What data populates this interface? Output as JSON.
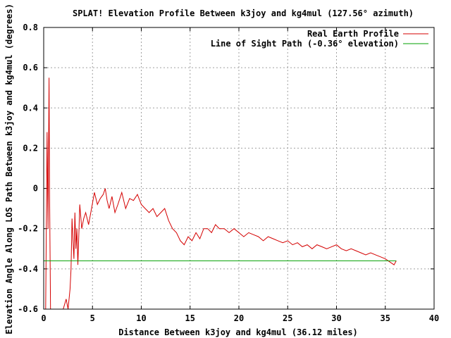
{
  "chart_data": {
    "type": "line",
    "title": "SPLAT! Elevation Profile Between k3joy and kg4mul (127.56° azimuth)",
    "xlabel": "Distance Between k3joy and kg4mul (36.12 miles)",
    "ylabel": "Elevation Angle Along LOS Path Between k3joy and kg4mul (degrees)",
    "xlim": [
      0,
      40
    ],
    "ylim": [
      -0.6,
      0.8
    ],
    "xticks": [
      0,
      5,
      10,
      15,
      20,
      25,
      30,
      35,
      40
    ],
    "yticks": [
      -0.6,
      -0.4,
      -0.2,
      0,
      0.2,
      0.4,
      0.6,
      0.8
    ],
    "xtick_labels": [
      "0",
      "5",
      "10",
      "15",
      "20",
      "25",
      "30",
      "35",
      "40"
    ],
    "ytick_labels": [
      "-0.6",
      "-0.4",
      "-0.2",
      "0",
      "0.2",
      "0.4",
      "0.6",
      "0.8"
    ],
    "grid": true,
    "legend_position": "top-right",
    "series": [
      {
        "name": "Real Earth Profile",
        "color": "#d40000",
        "x": [
          0.2,
          0.35,
          0.45,
          0.55,
          0.6,
          0.7,
          0.8,
          0.95,
          1.1,
          1.3,
          1.6,
          2.0,
          2.3,
          2.5,
          2.7,
          2.8,
          2.9,
          3.0,
          3.1,
          3.2,
          3.3,
          3.4,
          3.5,
          3.7,
          3.9,
          4.1,
          4.3,
          4.6,
          4.9,
          5.2,
          5.5,
          5.8,
          6.1,
          6.3,
          6.5,
          6.7,
          7.0,
          7.3,
          7.6,
          8.0,
          8.4,
          8.8,
          9.2,
          9.6,
          10.0,
          10.4,
          10.8,
          11.2,
          11.6,
          12.0,
          12.4,
          12.8,
          13.2,
          13.6,
          14.0,
          14.4,
          14.8,
          15.2,
          15.6,
          16.0,
          16.4,
          16.8,
          17.2,
          17.6,
          18.0,
          18.5,
          19.0,
          19.5,
          20.0,
          20.5,
          21.0,
          21.5,
          22.0,
          22.5,
          23.0,
          23.5,
          24.0,
          24.5,
          25.0,
          25.5,
          26.0,
          26.5,
          27.0,
          27.5,
          28.0,
          28.5,
          29.0,
          29.5,
          30.0,
          30.5,
          31.0,
          31.5,
          32.0,
          32.5,
          33.0,
          33.5,
          34.0,
          34.5,
          35.0,
          35.3,
          35.6,
          35.9,
          36.12
        ],
        "y": [
          -0.6,
          0.28,
          -0.2,
          0.55,
          0.0,
          -0.6,
          -0.6,
          -0.6,
          -0.6,
          -0.6,
          -0.6,
          -0.6,
          -0.55,
          -0.6,
          -0.5,
          -0.4,
          -0.15,
          -0.25,
          -0.35,
          -0.12,
          -0.3,
          -0.2,
          -0.38,
          -0.08,
          -0.2,
          -0.15,
          -0.12,
          -0.18,
          -0.1,
          -0.02,
          -0.08,
          -0.05,
          -0.03,
          0.0,
          -0.06,
          -0.1,
          -0.04,
          -0.12,
          -0.08,
          -0.02,
          -0.1,
          -0.05,
          -0.06,
          -0.03,
          -0.08,
          -0.1,
          -0.12,
          -0.1,
          -0.14,
          -0.12,
          -0.1,
          -0.16,
          -0.2,
          -0.22,
          -0.26,
          -0.28,
          -0.24,
          -0.26,
          -0.22,
          -0.25,
          -0.2,
          -0.2,
          -0.22,
          -0.18,
          -0.2,
          -0.2,
          -0.22,
          -0.2,
          -0.22,
          -0.24,
          -0.22,
          -0.23,
          -0.24,
          -0.26,
          -0.24,
          -0.25,
          -0.26,
          -0.27,
          -0.26,
          -0.28,
          -0.27,
          -0.29,
          -0.28,
          -0.3,
          -0.28,
          -0.29,
          -0.3,
          -0.29,
          -0.28,
          -0.3,
          -0.31,
          -0.3,
          -0.31,
          -0.32,
          -0.33,
          -0.32,
          -0.33,
          -0.34,
          -0.35,
          -0.36,
          -0.37,
          -0.38,
          -0.36
        ]
      },
      {
        "name": "Line of Sight Path (-0.36° elevation)",
        "color": "#00a000",
        "x": [
          0,
          36.12
        ],
        "y": [
          -0.36,
          -0.36
        ]
      }
    ]
  }
}
